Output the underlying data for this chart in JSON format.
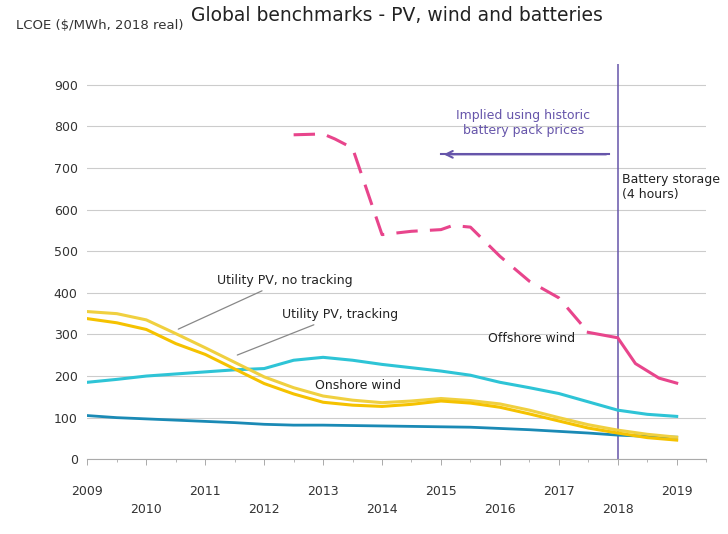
{
  "title": "Global benchmarks - PV, wind and batteries",
  "ylabel_line1": "LCOE ($/MWh, 2018 real)",
  "ylim": [
    0,
    950
  ],
  "yticks": [
    0,
    100,
    200,
    300,
    400,
    500,
    600,
    700,
    800,
    900
  ],
  "bg_color": "#ffffff",
  "grid_color": "#cccccc",
  "vline_x": 2018.0,
  "vline_color": "#6655aa",
  "arrow_color": "#6655aa",
  "onshore_wind": {
    "x": [
      2009,
      2009.5,
      2010,
      2010.5,
      2011,
      2011.5,
      2012,
      2012.5,
      2013,
      2013.5,
      2014,
      2014.5,
      2015,
      2015.5,
      2016,
      2016.5,
      2017,
      2017.5,
      2018,
      2018.5,
      2019
    ],
    "y": [
      105,
      100,
      97,
      94,
      91,
      88,
      84,
      82,
      82,
      81,
      80,
      79,
      78,
      77,
      74,
      71,
      67,
      63,
      58,
      55,
      53
    ],
    "color": "#1a8ab5",
    "lw": 2.0
  },
  "offshore_wind": {
    "x": [
      2009,
      2009.5,
      2010,
      2010.5,
      2011,
      2011.5,
      2012,
      2012.5,
      2013,
      2013.5,
      2014,
      2014.5,
      2015,
      2015.5,
      2016,
      2016.5,
      2017,
      2017.5,
      2018,
      2018.5,
      2019
    ],
    "y": [
      185,
      192,
      200,
      205,
      210,
      215,
      218,
      238,
      245,
      238,
      228,
      220,
      212,
      202,
      185,
      172,
      158,
      138,
      118,
      108,
      103
    ],
    "color": "#2ec4d6",
    "lw": 2.2
  },
  "pv_no_tracking": {
    "x": [
      2009,
      2009.5,
      2010,
      2010.5,
      2011,
      2011.5,
      2012,
      2012.5,
      2013,
      2013.5,
      2014,
      2014.5,
      2015,
      2015.5,
      2016,
      2016.5,
      2017,
      2017.5,
      2018,
      2018.5,
      2019
    ],
    "y": [
      355,
      350,
      335,
      302,
      268,
      233,
      198,
      172,
      152,
      142,
      136,
      140,
      146,
      141,
      133,
      118,
      100,
      83,
      70,
      60,
      53
    ],
    "color": "#f0d040",
    "lw": 2.2
  },
  "pv_tracking": {
    "x": [
      2009,
      2009.5,
      2010,
      2010.5,
      2011,
      2011.5,
      2012,
      2012.5,
      2013,
      2013.5,
      2014,
      2014.5,
      2015,
      2015.5,
      2016,
      2016.5,
      2017,
      2017.5,
      2018,
      2018.5,
      2019
    ],
    "y": [
      338,
      328,
      312,
      278,
      252,
      217,
      182,
      157,
      137,
      130,
      127,
      132,
      140,
      135,
      125,
      109,
      92,
      75,
      63,
      52,
      46
    ],
    "color": "#f5c200",
    "lw": 2.2
  },
  "battery_dashed": {
    "x": [
      2012.5,
      2013,
      2013.2,
      2013.5,
      2014,
      2014.5,
      2015,
      2015.2,
      2015.5,
      2016,
      2016.5,
      2017,
      2017.5
    ],
    "y": [
      780,
      782,
      770,
      748,
      540,
      548,
      552,
      562,
      558,
      488,
      428,
      388,
      305
    ],
    "color": "#e8458c",
    "lw": 2.2
  },
  "battery_solid": {
    "x": [
      2017.5,
      2018,
      2018.3,
      2018.7,
      2019
    ],
    "y": [
      305,
      292,
      230,
      195,
      183
    ],
    "color": "#e8458c",
    "lw": 2.2
  },
  "xtick_top": [
    2009,
    2011,
    2013,
    2015,
    2017,
    2019
  ],
  "xtick_bottom": [
    2010,
    2012,
    2014,
    2016,
    2018
  ],
  "xmin": 2009,
  "xmax": 2019.5
}
